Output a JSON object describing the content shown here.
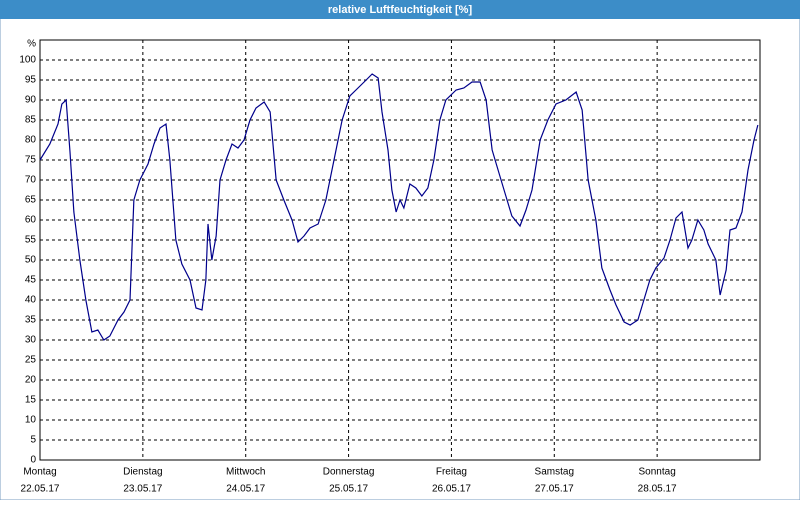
{
  "window_title": "relative Luftfeuchtigkeit [%]",
  "chart_data": {
    "type": "line",
    "y_unit_label": "%",
    "xlim": [
      0,
      168
    ],
    "xticks": [
      {
        "value": 0,
        "label": "Montag"
      },
      {
        "value": 24,
        "label": "Dienstag"
      },
      {
        "value": 48,
        "label": "Mittwoch"
      },
      {
        "value": 72,
        "label": "Donnerstag"
      },
      {
        "value": 96,
        "label": "Freitag"
      },
      {
        "value": 120,
        "label": "Samstag"
      },
      {
        "value": 144,
        "label": "Sonntag"
      }
    ],
    "xtick_dates": [
      "22.05.17",
      "23.05.17",
      "24.05.17",
      "25.05.17",
      "26.05.17",
      "27.05.17",
      "28.05.17"
    ],
    "ylim": [
      0,
      105
    ],
    "yticks": [
      0,
      5,
      10,
      15,
      20,
      25,
      30,
      35,
      40,
      45,
      50,
      55,
      60,
      65,
      70,
      75,
      80,
      85,
      90,
      95,
      100
    ],
    "grid": true,
    "series": [
      {
        "color": "#00008b",
        "x": [
          0,
          2.3,
          4.2,
          5.1,
          6.1,
          7,
          7.9,
          9.3,
          10.7,
          12.1,
          13.5,
          14.9,
          16.3,
          18.2,
          19.6,
          21,
          21.9,
          23.3,
          25.2,
          26.6,
          28,
          29.4,
          30.3,
          31.7,
          33.1,
          35,
          36.4,
          37.8,
          38.7,
          39.2,
          40.1,
          41.1,
          42,
          43.4,
          44.8,
          46.2,
          47.6,
          49,
          50.4,
          52.3,
          53.7,
          55.1,
          56.9,
          58.8,
          60.2,
          61.6,
          63,
          64.9,
          66.7,
          68.6,
          70.5,
          72.3,
          74.2,
          76.1,
          77.5,
          78.9,
          79.8,
          81.2,
          82.1,
          83.1,
          84,
          84.9,
          86.3,
          87.7,
          89.1,
          90.5,
          91.9,
          93.3,
          94.7,
          97.1,
          98.9,
          100.8,
          102.7,
          104.1,
          105.5,
          107.3,
          108.7,
          110.1,
          112,
          113.4,
          114.8,
          116.7,
          118.5,
          120.4,
          122.7,
          125.1,
          126.5,
          127.9,
          129.7,
          131.1,
          133,
          134.4,
          136.3,
          137.7,
          139.5,
          140.9,
          142.3,
          143.7,
          145.6,
          147,
          148.4,
          149.8,
          151.2,
          152.1,
          153.5,
          154.9,
          155.9,
          157.7,
          158.7,
          160.1,
          161,
          162.4,
          163.8,
          165.2,
          166.6,
          167.5
        ],
        "values": [
          75,
          79,
          84,
          89,
          90,
          77,
          62,
          50,
          40,
          32,
          32.5,
          30,
          31,
          35,
          37,
          40,
          65,
          70,
          74,
          79,
          83,
          84,
          75,
          55,
          49,
          45,
          38,
          37.5,
          45,
          59,
          50,
          56,
          70,
          75,
          79,
          78,
          80,
          85,
          88,
          89.5,
          87,
          70,
          65,
          60,
          54.5,
          56,
          58,
          59,
          65,
          75,
          85,
          91,
          93,
          95,
          96.5,
          95.5,
          87,
          77.5,
          67.5,
          62,
          65,
          63,
          69,
          68,
          66,
          68,
          75,
          85,
          90,
          92.5,
          93,
          94.5,
          94.5,
          90,
          77.5,
          71,
          66,
          61,
          58.5,
          62.5,
          67.5,
          80,
          85,
          89,
          90,
          92,
          87.5,
          70,
          60,
          48,
          42.5,
          38.75,
          34.5,
          33.75,
          35,
          40,
          45,
          48,
          50.5,
          55,
          60.5,
          62,
          53,
          55,
          60,
          57.5,
          54,
          50,
          41.25,
          47.5,
          57.5,
          58,
          62,
          72.5,
          80,
          83.75
        ]
      }
    ]
  }
}
